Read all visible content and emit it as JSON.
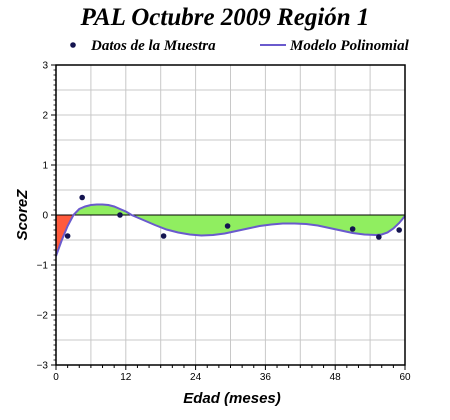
{
  "chart_data": {
    "type": "line",
    "title": "PAL Octubre 2009 Región 1",
    "xlabel": "Edad (meses)",
    "ylabel": "ScoreZ",
    "xlim": [
      0,
      60
    ],
    "ylim": [
      -3,
      3
    ],
    "x_ticks": [
      0,
      12,
      24,
      36,
      48,
      60
    ],
    "y_ticks": [
      -3,
      -2,
      -1,
      0,
      1,
      2,
      3
    ],
    "x_tick_labels": [
      "0",
      "12",
      "24",
      "36",
      "48",
      "60"
    ],
    "y_tick_labels": [
      "−3",
      "−2",
      "−1",
      "0",
      "1",
      "2",
      "3"
    ],
    "grid": true,
    "legend": {
      "placement": "top"
    },
    "series": [
      {
        "name": "Datos de la Muestra",
        "kind": "scatter",
        "color": "#141450",
        "points": [
          {
            "x": 2,
            "y": -0.42
          },
          {
            "x": 4.5,
            "y": 0.35
          },
          {
            "x": 11,
            "y": 0.0
          },
          {
            "x": 18.5,
            "y": -0.42
          },
          {
            "x": 29.5,
            "y": -0.22
          },
          {
            "x": 51,
            "y": -0.28
          },
          {
            "x": 55.5,
            "y": -0.44
          },
          {
            "x": 59,
            "y": -0.3
          }
        ]
      },
      {
        "name": "Modelo Polinomial",
        "kind": "line",
        "color": "#6a5acd",
        "points": [
          {
            "x": 0,
            "y": -0.82
          },
          {
            "x": 1,
            "y": -0.5
          },
          {
            "x": 2,
            "y": -0.22
          },
          {
            "x": 3,
            "y": 0.0
          },
          {
            "x": 4,
            "y": 0.12
          },
          {
            "x": 5,
            "y": 0.17
          },
          {
            "x": 6,
            "y": 0.2
          },
          {
            "x": 7,
            "y": 0.21
          },
          {
            "x": 8,
            "y": 0.21
          },
          {
            "x": 9,
            "y": 0.2
          },
          {
            "x": 10,
            "y": 0.17
          },
          {
            "x": 11,
            "y": 0.12
          },
          {
            "x": 12,
            "y": 0.07
          },
          {
            "x": 13,
            "y": 0.0
          },
          {
            "x": 15,
            "y": -0.1
          },
          {
            "x": 17,
            "y": -0.2
          },
          {
            "x": 19,
            "y": -0.29
          },
          {
            "x": 21,
            "y": -0.35
          },
          {
            "x": 23,
            "y": -0.39
          },
          {
            "x": 25,
            "y": -0.41
          },
          {
            "x": 27,
            "y": -0.4
          },
          {
            "x": 29,
            "y": -0.37
          },
          {
            "x": 31,
            "y": -0.32
          },
          {
            "x": 33,
            "y": -0.27
          },
          {
            "x": 35,
            "y": -0.22
          },
          {
            "x": 37,
            "y": -0.19
          },
          {
            "x": 39,
            "y": -0.17
          },
          {
            "x": 41,
            "y": -0.17
          },
          {
            "x": 43,
            "y": -0.18
          },
          {
            "x": 45,
            "y": -0.21
          },
          {
            "x": 47,
            "y": -0.26
          },
          {
            "x": 49,
            "y": -0.31
          },
          {
            "x": 51,
            "y": -0.36
          },
          {
            "x": 53,
            "y": -0.39
          },
          {
            "x": 55,
            "y": -0.4
          },
          {
            "x": 56,
            "y": -0.39
          },
          {
            "x": 57,
            "y": -0.35
          },
          {
            "x": 58,
            "y": -0.27
          },
          {
            "x": 59,
            "y": -0.16
          },
          {
            "x": 60,
            "y": -0.02
          }
        ]
      }
    ],
    "fill_above_zero_color": "#90ee60",
    "fill_below_zero_color": "#ff5a3c"
  }
}
